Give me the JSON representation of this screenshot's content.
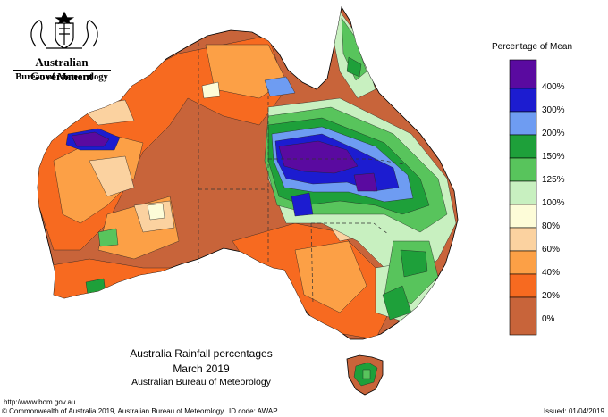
{
  "header": {
    "government": "Australian Government",
    "bureau": "Bureau of Meteorology"
  },
  "legend": {
    "title": "Percentage of Mean",
    "labels": [
      "400%",
      "300%",
      "200%",
      "150%",
      "125%",
      "100%",
      "80%",
      "60%",
      "40%",
      "20%",
      "0%"
    ],
    "colors": [
      "#5a0aa0",
      "#1c1cd0",
      "#6e9cf2",
      "#1ea03a",
      "#58c45c",
      "#c8f0c0",
      "#fdfcd8",
      "#fbd2a0",
      "#fca046",
      "#f76a20",
      "#c8643a"
    ]
  },
  "caption": {
    "line1": "Australia Rainfall percentages",
    "line2": "March 2019",
    "line3": "Australian Bureau of Meteorology"
  },
  "footer": {
    "url": "http://www.bom.gov.au",
    "copyright": "© Commonwealth of Australia 2019, Australian Bureau of Meteorology",
    "id_code": "ID code: AWAP",
    "issued": "Issued: 01/04/2019"
  }
}
